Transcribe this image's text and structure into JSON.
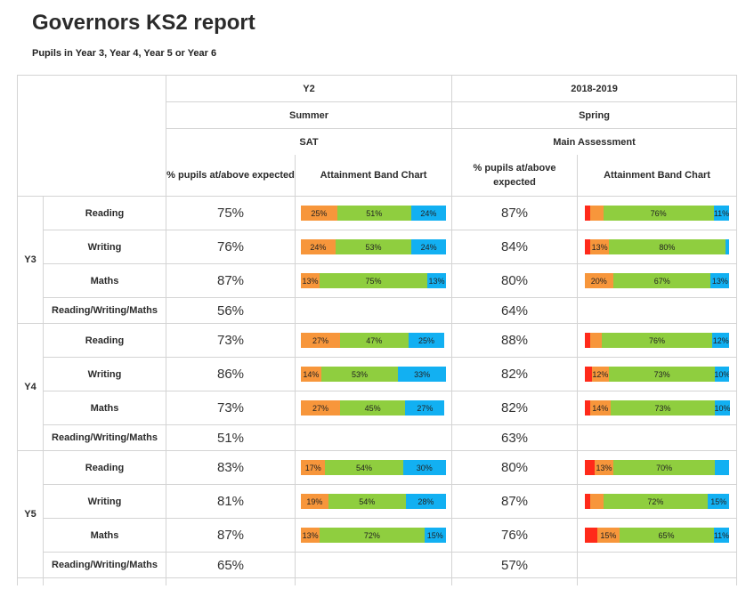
{
  "title": "Governors KS2 report",
  "subtitle": "Pupils in Year 3, Year 4, Year 5 or Year 6",
  "colors": {
    "red": "#ff2a1a",
    "orange": "#f7963b",
    "green": "#8fce3f",
    "blue": "#12b0f2"
  },
  "columns": {
    "g1": {
      "year": "Y2",
      "term": "Summer",
      "assessment": "SAT",
      "pct_header": "% pupils at/above expected",
      "chart_header": "Attainment Band Chart"
    },
    "g2": {
      "year": "2018-2019",
      "term": "Spring",
      "assessment": "Main Assessment",
      "pct_header": "% pupils at/above expected",
      "chart_header": "Attainment Band Chart"
    }
  },
  "years": [
    {
      "label": "Y3",
      "rows": [
        {
          "subject": "Reading",
          "p1": "75%",
          "p2": "87%",
          "b1": [
            {
              "c": "orange",
              "v": 25,
              "t": "25%"
            },
            {
              "c": "green",
              "v": 51,
              "t": "51%"
            },
            {
              "c": "blue",
              "v": 24,
              "t": "24%"
            }
          ],
          "b2": [
            {
              "c": "red",
              "v": 4,
              "t": ""
            },
            {
              "c": "orange",
              "v": 9,
              "t": ""
            },
            {
              "c": "green",
              "v": 76,
              "t": "76%"
            },
            {
              "c": "blue",
              "v": 11,
              "t": "11%"
            }
          ]
        },
        {
          "subject": "Writing",
          "p1": "76%",
          "p2": "84%",
          "b1": [
            {
              "c": "orange",
              "v": 24,
              "t": "24%"
            },
            {
              "c": "green",
              "v": 53,
              "t": "53%"
            },
            {
              "c": "blue",
              "v": 24,
              "t": "24%"
            }
          ],
          "b2": [
            {
              "c": "red",
              "v": 4,
              "t": ""
            },
            {
              "c": "orange",
              "v": 13,
              "t": "13%"
            },
            {
              "c": "green",
              "v": 80,
              "t": "80%"
            },
            {
              "c": "blue",
              "v": 3,
              "t": ""
            }
          ]
        },
        {
          "subject": "Maths",
          "p1": "87%",
          "p2": "80%",
          "b1": [
            {
              "c": "orange",
              "v": 13,
              "t": "13%"
            },
            {
              "c": "green",
              "v": 75,
              "t": "75%"
            },
            {
              "c": "blue",
              "v": 13,
              "t": "13%"
            }
          ],
          "b2": [
            {
              "c": "orange",
              "v": 20,
              "t": "20%"
            },
            {
              "c": "green",
              "v": 67,
              "t": "67%"
            },
            {
              "c": "blue",
              "v": 13,
              "t": "13%"
            }
          ]
        }
      ],
      "rwm": {
        "label": "Reading/Writing/Maths",
        "p1": "56%",
        "p2": "64%"
      }
    },
    {
      "label": "Y4",
      "rows": [
        {
          "subject": "Reading",
          "p1": "73%",
          "p2": "88%",
          "b1": [
            {
              "c": "orange",
              "v": 27,
              "t": "27%"
            },
            {
              "c": "green",
              "v": 47,
              "t": "47%"
            },
            {
              "c": "blue",
              "v": 25,
              "t": "25%"
            }
          ],
          "b2": [
            {
              "c": "red",
              "v": 4,
              "t": ""
            },
            {
              "c": "orange",
              "v": 8,
              "t": ""
            },
            {
              "c": "green",
              "v": 76,
              "t": "76%"
            },
            {
              "c": "blue",
              "v": 12,
              "t": "12%"
            }
          ]
        },
        {
          "subject": "Writing",
          "p1": "86%",
          "p2": "82%",
          "b1": [
            {
              "c": "orange",
              "v": 14,
              "t": "14%"
            },
            {
              "c": "green",
              "v": 53,
              "t": "53%"
            },
            {
              "c": "blue",
              "v": 33,
              "t": "33%"
            }
          ],
          "b2": [
            {
              "c": "red",
              "v": 5,
              "t": ""
            },
            {
              "c": "orange",
              "v": 12,
              "t": "12%"
            },
            {
              "c": "green",
              "v": 73,
              "t": "73%"
            },
            {
              "c": "blue",
              "v": 10,
              "t": "10%"
            }
          ]
        },
        {
          "subject": "Maths",
          "p1": "73%",
          "p2": "82%",
          "b1": [
            {
              "c": "orange",
              "v": 27,
              "t": "27%"
            },
            {
              "c": "green",
              "v": 45,
              "t": "45%"
            },
            {
              "c": "blue",
              "v": 27,
              "t": "27%"
            }
          ],
          "b2": [
            {
              "c": "red",
              "v": 4,
              "t": ""
            },
            {
              "c": "orange",
              "v": 14,
              "t": "14%"
            },
            {
              "c": "green",
              "v": 73,
              "t": "73%"
            },
            {
              "c": "blue",
              "v": 10,
              "t": "10%"
            }
          ]
        }
      ],
      "rwm": {
        "label": "Reading/Writing/Maths",
        "p1": "51%",
        "p2": "63%"
      }
    },
    {
      "label": "Y5",
      "rows": [
        {
          "subject": "Reading",
          "p1": "83%",
          "p2": "80%",
          "b1": [
            {
              "c": "orange",
              "v": 17,
              "t": "17%"
            },
            {
              "c": "green",
              "v": 54,
              "t": "54%"
            },
            {
              "c": "blue",
              "v": 30,
              "t": "30%"
            }
          ],
          "b2": [
            {
              "c": "red",
              "v": 7,
              "t": ""
            },
            {
              "c": "orange",
              "v": 13,
              "t": "13%"
            },
            {
              "c": "green",
              "v": 70,
              "t": "70%"
            },
            {
              "c": "blue",
              "v": 10,
              "t": ""
            }
          ]
        },
        {
          "subject": "Writing",
          "p1": "81%",
          "p2": "87%",
          "b1": [
            {
              "c": "orange",
              "v": 19,
              "t": "19%"
            },
            {
              "c": "green",
              "v": 54,
              "t": "54%"
            },
            {
              "c": "blue",
              "v": 28,
              "t": "28%"
            }
          ],
          "b2": [
            {
              "c": "red",
              "v": 4,
              "t": ""
            },
            {
              "c": "orange",
              "v": 9,
              "t": ""
            },
            {
              "c": "green",
              "v": 72,
              "t": "72%"
            },
            {
              "c": "blue",
              "v": 15,
              "t": "15%"
            }
          ]
        },
        {
          "subject": "Maths",
          "p1": "87%",
          "p2": "76%",
          "b1": [
            {
              "c": "orange",
              "v": 13,
              "t": "13%"
            },
            {
              "c": "green",
              "v": 72,
              "t": "72%"
            },
            {
              "c": "blue",
              "v": 15,
              "t": "15%"
            }
          ],
          "b2": [
            {
              "c": "red",
              "v": 9,
              "t": ""
            },
            {
              "c": "orange",
              "v": 15,
              "t": "15%"
            },
            {
              "c": "green",
              "v": 65,
              "t": "65%"
            },
            {
              "c": "blue",
              "v": 11,
              "t": "11%"
            }
          ]
        }
      ],
      "rwm": {
        "label": "Reading/Writing/Maths",
        "p1": "65%",
        "p2": "57%"
      }
    }
  ]
}
